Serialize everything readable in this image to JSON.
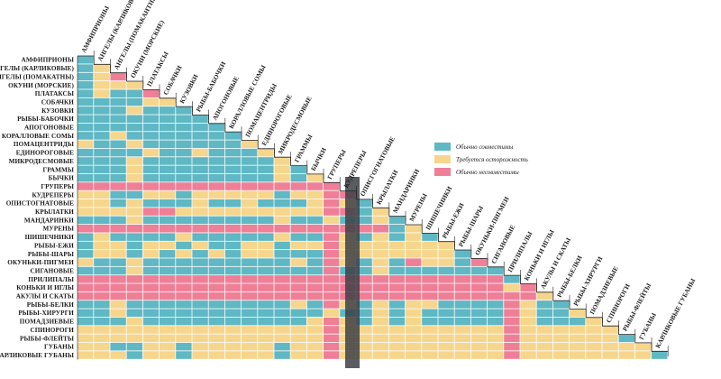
{
  "species": [
    "Амфиприоны",
    "Ангелы (карликовые)",
    "Ангелы (помакатны)",
    "Окуни (морские)",
    "Платаксы",
    "Собачки",
    "Кузовки",
    "Рыбы-бабочки",
    "Апогоновые",
    "Коралловые сомы",
    "Помацентриды",
    "Единороговые",
    "Микродесмовые",
    "Граммы",
    "Бычки",
    "Груперы",
    "Кудреперы",
    "Опистогнатовые",
    "Крылатки",
    "Мандаринки",
    "Мурены",
    "Шишечники",
    "Рыбы-ежи",
    "Рыбы-шары",
    "Окуньки-пигмеи",
    "Сигановые",
    "Прилипалы",
    "Коньки и иглы",
    "Акулы и скаты",
    "Рыбы-белки",
    "Рыбы-хирурги",
    "Помадзиевые",
    "Спинороги",
    "Рыбы-флейты",
    "Губаны",
    "Карликовые губаны"
  ],
  "column_labels": [
    "Амфиприоны",
    "Ангелы (карликовые)",
    "Ангелы (помакантны)",
    "Окуни (морские)",
    "Платаксы",
    "Собачки",
    "Кузовки",
    "Рыбы-бабочки",
    "Апогоновые",
    "Коралловые сомы",
    "Помацентриды",
    "Единороговые",
    "Микродесмовые",
    "Граммы",
    "Бычки",
    "Груперы",
    "Кудреперы",
    "Описгогнатовые",
    "Крылатки",
    "Мандаринки",
    "Мурены",
    "Шишечники",
    "Рыбы-ежи",
    "Рыбы-шары",
    "Окуньки-пигмеи",
    "Сигановые",
    "Прилипалы",
    "Коньки и иглы",
    "Акулы и скаты",
    "Рыбы-белки",
    "Рыбы-хирурги",
    "Помадзиевые",
    "Спинороги",
    "Рыбы-флейты",
    "Губаны",
    "Карликовые губаны"
  ],
  "legend": [
    {
      "code": "C",
      "label": "Обычно совместимы",
      "color": "#5fb8c4"
    },
    {
      "code": "W",
      "label": "Требуется осторожность",
      "color": "#f6d68c"
    },
    {
      "code": "I",
      "label": "Обычно несовместимы",
      "color": "#ef7f97"
    }
  ],
  "colors": {
    "C": "#5fb8c4",
    "W": "#f6d68c",
    "I": "#ef7f97",
    "grid": "#ffffff",
    "line": "#222222",
    "fold": "#3e3f45"
  },
  "matrix": [
    "C",
    "CW",
    "CWI",
    "CWWW",
    "CWCCI",
    "CCCCWW",
    "CCCWCCC",
    "CCCCCCCC",
    "CCCCCCCCC",
    "CCWCCCCCCC",
    "WCCWCCCCCCW",
    "CCCCWCCWCCCW",
    "CCCWCCCCCCCCW",
    "CCCWCCCCCCCCWC",
    "CCCWCCCCCCCCWCW",
    "IIIIIIIIIIIIIIII",
    "WWCCWWCWWWWWCWWII",
    "WWCWCCCWCCWCCCWIWC",
    "WWWWIIWWWWWWWWWIICW",
    "CCCWCCCCCCCCWCCWCCWC",
    "IIIIIIIIIIIIIIIIIIICW",
    "CWCCCCWCCCCCWCCIWCWCWC",
    "CWWCWWCWCCWWCWWIWWWWWWW",
    "CWWCWCWCWCWWCCCIWWWWWWWC",
    "WCCWCCCCCCCCCWCIWCWCIWWCI",
    "CCCWCCCCCCCCCCCICCWCCCCCCC",
    "IIIIIIIIIIIIIIIIIIIIIIIIIIC",
    "IIIIIIIIIIIIIIIIIIIIIIIIIIWI",
    "IIIIIIIIIIIIIIIIIIIIIIIIIIIIW",
    "CCWCCCCCCCCCCWCIWCWCWWCCCCIWCC",
    "CCWCCCCCCCCCCCCWCCWCWCCCCCIWCCW",
    "CCCWCCCCCCCCCCWIWCWCWCCCCCIWCCCW",
    "WWWWWWWWWWWWWWWIWWWWWWWWWWIWWWWWW",
    "WWWWWWWWWWWWWWWIWWWWWWWWWWIWWWWWWC",
    "WWCCWWCWWWWWCWWIWWWWWWWWWWIWWWWWWWW",
    "WWWCWWCWWWWWCWWIWWWWWWWWWWIWWWWWWWWC"
  ]
}
